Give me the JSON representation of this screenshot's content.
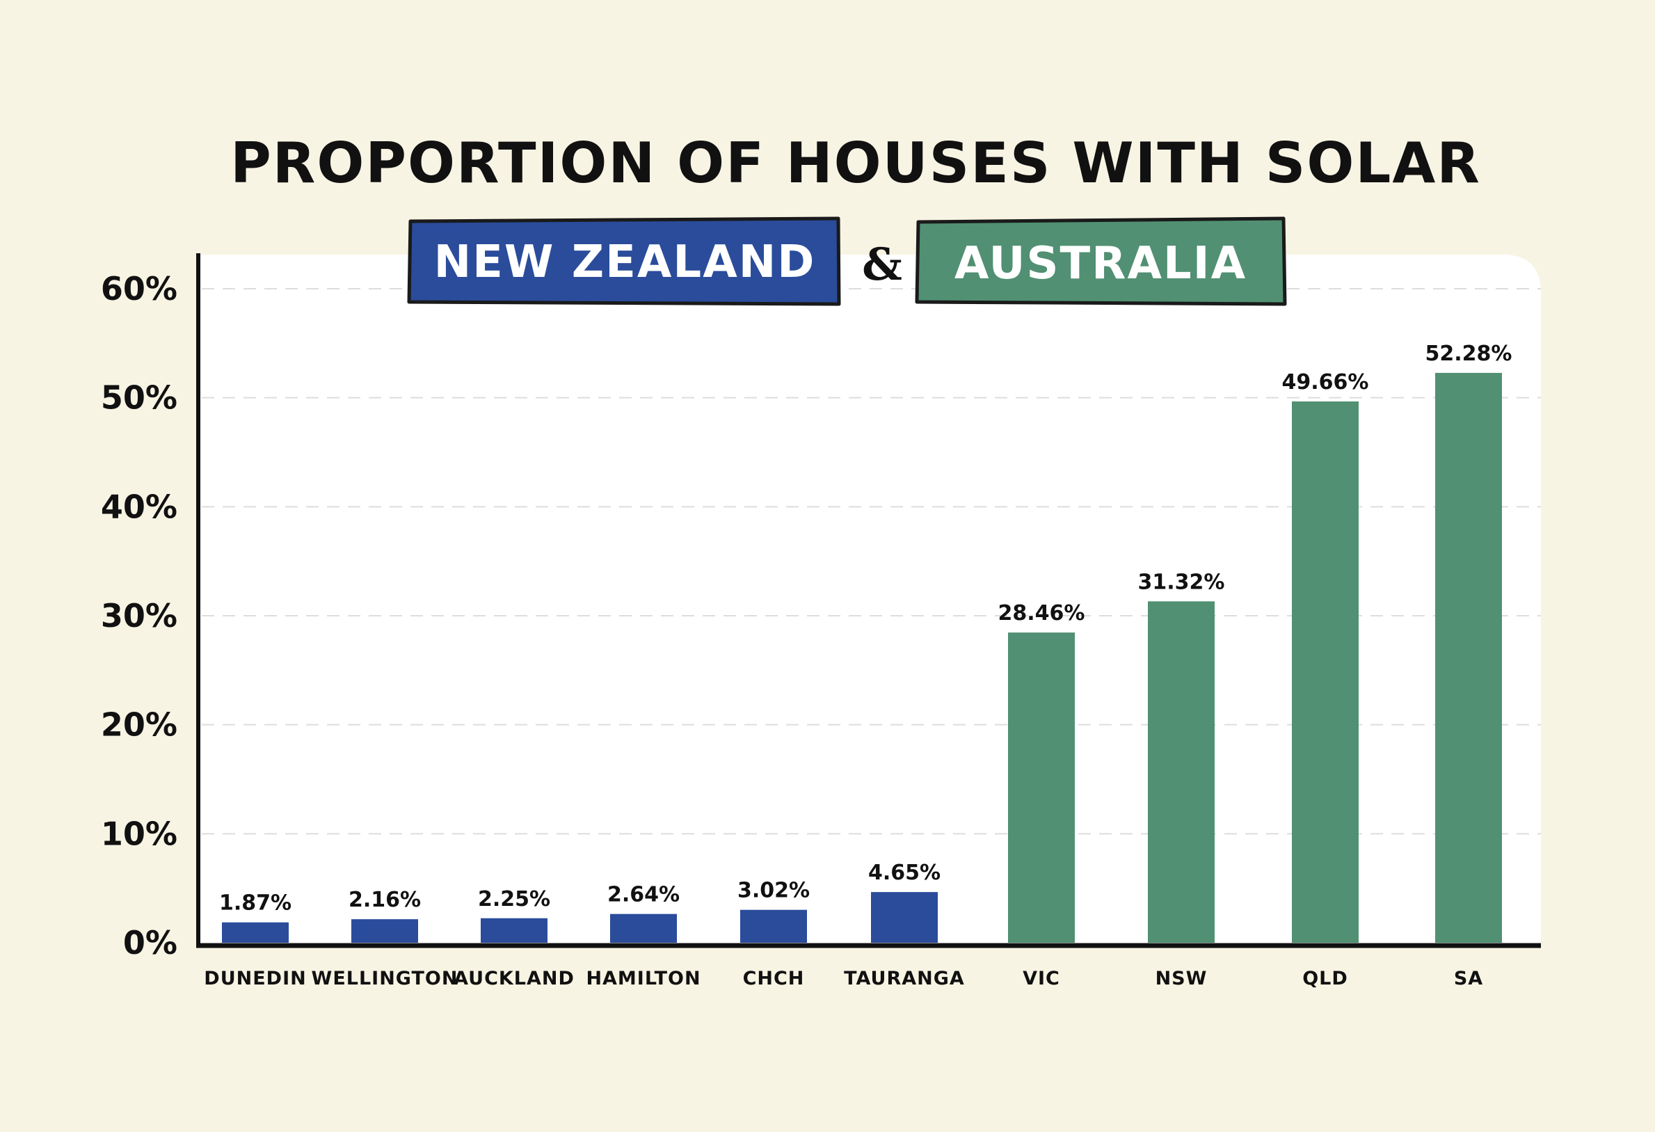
{
  "title": "PROPORTION OF HOUSES WITH SOLAR",
  "badges": {
    "left": "NEW ZEALAND",
    "connector": "&",
    "right": "AUSTRALIA"
  },
  "colors": {
    "background": "#f8f4e4",
    "plot_background": "#ffffff",
    "new_zealand": "#2a4c9b",
    "australia": "#519073",
    "axis": "#111111",
    "grid": "#dddddd"
  },
  "chart_data": {
    "type": "bar",
    "title": "PROPORTION OF HOUSES WITH SOLAR",
    "xlabel": "",
    "ylabel": "",
    "ylim": [
      0,
      60
    ],
    "yticks": [
      "0%",
      "10%",
      "20%",
      "30%",
      "40%",
      "50%",
      "60%"
    ],
    "grid": true,
    "categories": [
      "DUNEDIN",
      "WELLINGTON",
      "AUCKLAND",
      "HAMILTON",
      "CHCH",
      "TAURANGA",
      "VIC",
      "NSW",
      "QLD",
      "SA"
    ],
    "values": [
      1.87,
      2.16,
      2.25,
      2.64,
      3.02,
      4.65,
      28.46,
      31.32,
      49.66,
      52.28
    ],
    "data_labels": [
      "1.87%",
      "2.16%",
      "2.25%",
      "2.64%",
      "3.02%",
      "4.65%",
      "28.46%",
      "31.32%",
      "49.66%",
      "52.28%"
    ],
    "groups": [
      "new_zealand",
      "new_zealand",
      "new_zealand",
      "new_zealand",
      "new_zealand",
      "new_zealand",
      "australia",
      "australia",
      "australia",
      "australia"
    ]
  }
}
